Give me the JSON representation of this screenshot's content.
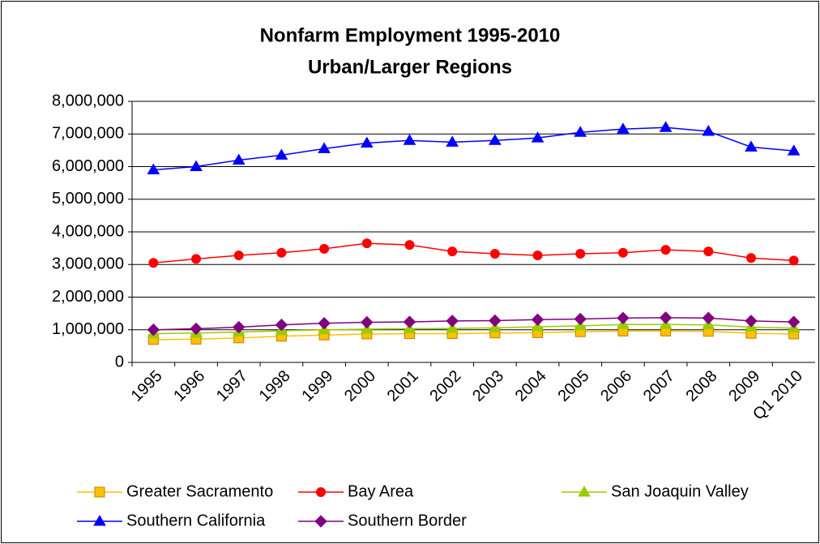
{
  "chart_data": {
    "type": "line",
    "title": "Nonfarm Employment 1995-2010",
    "subtitle": "Urban/Larger Regions",
    "categories": [
      "1995",
      "1996",
      "1997",
      "1998",
      "1999",
      "2000",
      "2001",
      "2002",
      "2003",
      "2004",
      "2005",
      "2006",
      "2007",
      "2008",
      "2009",
      "Q1 2010"
    ],
    "ylim": [
      0,
      8000000
    ],
    "yticks": [
      0,
      {
        "value": 1000000,
        "label": "1,000,000"
      },
      {
        "value": 2000000,
        "label": "2,000,000"
      },
      {
        "value": 3000000,
        "label": "3,000,000"
      },
      {
        "value": 4000000,
        "label": "4,000,000"
      },
      {
        "value": 5000000,
        "label": "5,000,000"
      },
      {
        "value": 6000000,
        "label": "6,000,000"
      },
      {
        "value": 7000000,
        "label": "7,000,000"
      },
      {
        "value": 8000000,
        "label": "8,000,000"
      }
    ],
    "grid": true,
    "series": [
      {
        "name": "Greater Sacramento",
        "color": "#FFC000",
        "marker": "square",
        "values": [
          700000,
          710000,
          750000,
          800000,
          840000,
          870000,
          880000,
          880000,
          900000,
          910000,
          940000,
          960000,
          960000,
          950000,
          890000,
          870000
        ]
      },
      {
        "name": "Bay Area",
        "color": "#FF0000",
        "marker": "circle",
        "values": [
          3050000,
          3170000,
          3280000,
          3360000,
          3480000,
          3650000,
          3600000,
          3400000,
          3330000,
          3280000,
          3330000,
          3360000,
          3450000,
          3400000,
          3200000,
          3120000
        ]
      },
      {
        "name": "San Joaquin Valley",
        "color": "#99CC00",
        "marker": "triangle",
        "values": [
          880000,
          900000,
          930000,
          970000,
          1000000,
          1020000,
          1030000,
          1040000,
          1060000,
          1090000,
          1120000,
          1160000,
          1160000,
          1150000,
          1080000,
          1050000
        ]
      },
      {
        "name": "Southern California",
        "color": "#0000FF",
        "marker": "triangle",
        "values": [
          5900000,
          6000000,
          6200000,
          6350000,
          6550000,
          6720000,
          6800000,
          6750000,
          6800000,
          6880000,
          7050000,
          7150000,
          7200000,
          7080000,
          6600000,
          6480000
        ]
      },
      {
        "name": "Southern Border",
        "color": "#800080",
        "marker": "diamond",
        "values": [
          1000000,
          1030000,
          1080000,
          1150000,
          1200000,
          1230000,
          1240000,
          1270000,
          1280000,
          1310000,
          1330000,
          1360000,
          1370000,
          1360000,
          1270000,
          1240000
        ]
      }
    ]
  }
}
